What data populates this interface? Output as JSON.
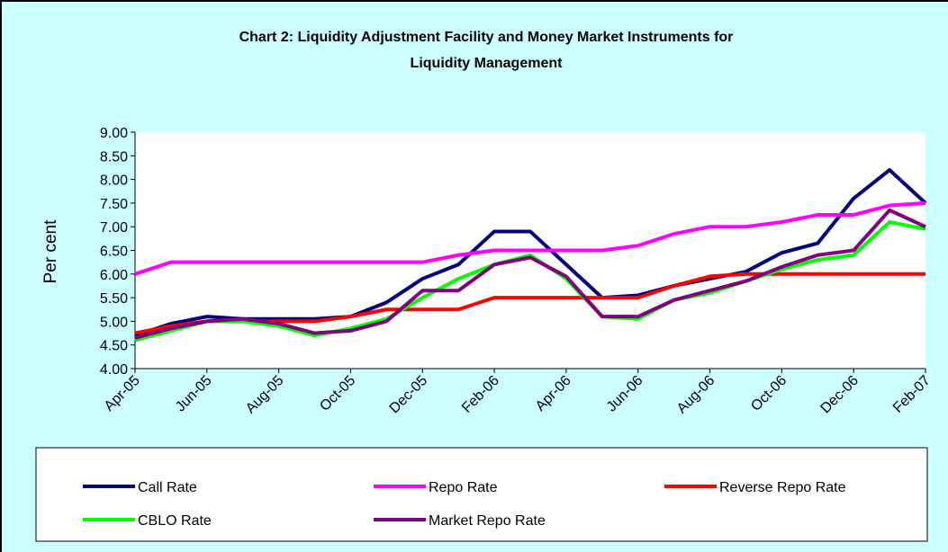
{
  "chart_data": {
    "type": "line",
    "title": [
      "Chart 2: Liquidity Adjustment Facility and Money Market Instruments for",
      "Liquidity Management"
    ],
    "y_label": "Per cent",
    "categories": [
      "Apr-05",
      null,
      "Jun-05",
      null,
      "Aug-05",
      null,
      "Oct-05",
      null,
      "Dec-05",
      null,
      "Feb-06",
      null,
      "Apr-06",
      null,
      "Jun-06",
      null,
      "Aug-06",
      null,
      "Oct-06",
      null,
      "Dec-06",
      null,
      "Feb-07"
    ],
    "series": [
      {
        "name": "Call Rate",
        "color": "#000080",
        "values": [
          4.7,
          4.95,
          5.1,
          5.05,
          5.05,
          5.05,
          5.1,
          5.4,
          5.9,
          6.2,
          6.9,
          6.9,
          6.2,
          5.5,
          5.55,
          5.75,
          5.9,
          6.05,
          6.45,
          6.65,
          7.6,
          8.2,
          7.5
        ]
      },
      {
        "name": "Repo Rate",
        "color": "#ff00ff",
        "values": [
          6.0,
          6.25,
          6.25,
          6.25,
          6.25,
          6.25,
          6.25,
          6.25,
          6.25,
          6.4,
          6.5,
          6.5,
          6.5,
          6.5,
          6.6,
          6.85,
          7.0,
          7.0,
          7.1,
          7.25,
          7.25,
          7.45,
          7.5
        ]
      },
      {
        "name": "Reverse Repo Rate",
        "color": "#ff0000",
        "values": [
          4.75,
          4.9,
          5.0,
          5.0,
          5.0,
          5.0,
          5.1,
          5.25,
          5.25,
          5.25,
          5.5,
          5.5,
          5.5,
          5.5,
          5.5,
          5.75,
          5.95,
          6.0,
          6.0,
          6.0,
          6.0,
          6.0,
          6.0
        ]
      },
      {
        "name": "CBLO Rate",
        "color": "#00ff00",
        "values": [
          4.6,
          4.8,
          5.0,
          5.0,
          4.9,
          4.7,
          4.85,
          5.05,
          5.5,
          5.9,
          6.2,
          6.4,
          5.9,
          5.1,
          5.05,
          5.45,
          5.6,
          5.85,
          6.1,
          6.3,
          6.4,
          7.1,
          6.95
        ]
      },
      {
        "name": "Market Repo Rate",
        "color": "#800080",
        "values": [
          4.65,
          4.85,
          5.0,
          5.05,
          4.95,
          4.75,
          4.8,
          5.0,
          5.65,
          5.65,
          6.2,
          6.35,
          5.95,
          5.1,
          5.1,
          5.45,
          5.65,
          5.85,
          6.15,
          6.4,
          6.5,
          7.35,
          7.0
        ]
      }
    ],
    "ylim": [
      4,
      9
    ],
    "yticks": [
      {
        "value": 4,
        "label": "4.00"
      },
      {
        "value": 4.5,
        "label": "4.50"
      },
      {
        "value": 5,
        "label": "5.00"
      },
      {
        "value": 5.5,
        "label": "5.50"
      },
      {
        "value": 6,
        "label": "6.00"
      },
      {
        "value": 6.5,
        "label": "6.50"
      },
      {
        "value": 7,
        "label": "7.00"
      },
      {
        "value": 7.5,
        "label": "7.50"
      },
      {
        "value": 8,
        "label": "8.00"
      },
      {
        "value": 8.5,
        "label": "8.50"
      },
      {
        "value": 9,
        "label": "9.00"
      }
    ],
    "legend": "bottom"
  }
}
